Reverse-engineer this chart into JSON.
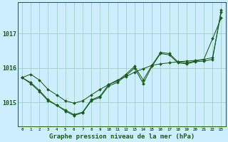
{
  "background_color": "#cceeff",
  "plot_bg_color": "#cceeff",
  "grid_color": "#99ccbb",
  "line_color": "#1a5c1a",
  "title": "Graphe pression niveau de la mer (hPa)",
  "title_fontsize": 6.5,
  "ylabel_ticks": [
    1015,
    1016,
    1017
  ],
  "ytick_fontsize": 6.0,
  "xtick_fontsize": 4.2,
  "xlim": [
    -0.5,
    23.5
  ],
  "ylim": [
    1014.3,
    1017.9
  ],
  "x": [
    0,
    1,
    2,
    3,
    4,
    5,
    6,
    7,
    8,
    9,
    10,
    11,
    12,
    13,
    14,
    15,
    16,
    17,
    18,
    19,
    20,
    21,
    22,
    23
  ],
  "series_smooth": [
    1015.72,
    1015.82,
    1015.65,
    1015.38,
    1015.22,
    1015.05,
    1014.98,
    1015.05,
    1015.22,
    1015.38,
    1015.52,
    1015.65,
    1015.75,
    1015.88,
    1015.98,
    1016.08,
    1016.12,
    1016.15,
    1016.18,
    1016.2,
    1016.22,
    1016.25,
    1016.3,
    1017.62
  ],
  "series_jagged1": [
    1015.72,
    1015.58,
    1015.35,
    1015.08,
    1014.92,
    1014.78,
    1014.65,
    1014.72,
    1015.08,
    1015.18,
    1015.52,
    1015.62,
    1015.82,
    1016.05,
    1015.65,
    1016.08,
    1016.45,
    1016.42,
    1016.18,
    1016.15,
    1016.2,
    1016.25,
    1016.85,
    1017.45
  ],
  "series_jagged2": [
    1015.72,
    1015.55,
    1015.32,
    1015.05,
    1014.92,
    1014.75,
    1014.62,
    1014.7,
    1015.05,
    1015.15,
    1015.48,
    1015.58,
    1015.78,
    1016.0,
    1015.55,
    1016.05,
    1016.42,
    1016.38,
    1016.15,
    1016.12,
    1016.18,
    1016.2,
    1016.25,
    1017.68
  ],
  "xtick_labels": [
    "0",
    "1",
    "2",
    "3",
    "4",
    "5",
    "6",
    "7",
    "8",
    "9",
    "10",
    "11",
    "12",
    "13",
    "14",
    "15",
    "16",
    "17",
    "18",
    "19",
    "20",
    "21",
    "22",
    "23"
  ]
}
